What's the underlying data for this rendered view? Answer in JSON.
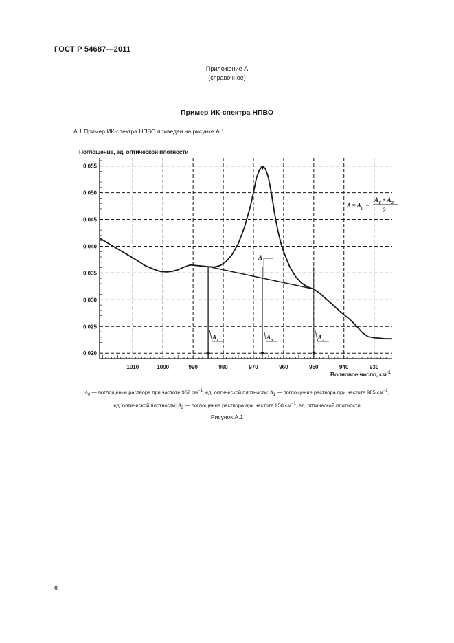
{
  "header": {
    "standard": "ГОСТ Р 54687—2011"
  },
  "annex": {
    "title": "Приложение А",
    "status": "(справочное)"
  },
  "section_title": "Пример ИК-спектра НПВО",
  "paragraph": "А.1  Пример ИК-спектра НПВО приведен на рисунке А.1.",
  "chart_data": {
    "type": "line",
    "ylabel": "Поглощение, ед. оптической плотности",
    "xlabel": "Волновое число, см",
    "xlabel_sup": "-1",
    "x_reversed": true,
    "xlim": [
      1021,
      924
    ],
    "ylim": [
      0.019,
      0.0565
    ],
    "x_ticks": [
      "1010",
      "1000",
      "990",
      "980",
      "970",
      "960",
      "950",
      "940",
      "930"
    ],
    "y_ticks": [
      "0,055",
      "0,050",
      "0,045",
      "0,040",
      "0,035",
      "0,030",
      "0,025",
      "0,020"
    ],
    "grid": true,
    "series": [
      {
        "x": [
          1021,
          1018,
          1015,
          1012,
          1009,
          1006,
          1003,
          1001,
          999,
          997,
          995,
          993,
          991,
          989,
          987,
          985,
          983,
          981,
          979,
          977,
          975,
          973,
          971,
          970,
          969,
          968,
          967,
          966,
          965,
          964,
          963,
          962,
          961,
          960,
          958,
          956,
          954,
          952,
          950,
          948,
          946,
          944,
          942,
          940,
          938,
          936,
          934,
          932,
          930,
          928,
          926,
          924
        ],
        "y": [
          0.0415,
          0.0405,
          0.0395,
          0.0385,
          0.0375,
          0.0364,
          0.0357,
          0.0353,
          0.0352,
          0.0353,
          0.0356,
          0.0361,
          0.0365,
          0.0364,
          0.0363,
          0.0362,
          0.0361,
          0.0364,
          0.0372,
          0.0385,
          0.0405,
          0.0435,
          0.0475,
          0.05,
          0.0528,
          0.0543,
          0.055,
          0.0545,
          0.0528,
          0.0498,
          0.0462,
          0.0432,
          0.0408,
          0.039,
          0.0362,
          0.0343,
          0.0331,
          0.0324,
          0.032,
          0.0312,
          0.0302,
          0.0292,
          0.0282,
          0.0272,
          0.0263,
          0.0252,
          0.0239,
          0.0231,
          0.0229,
          0.0228,
          0.0227,
          0.0227
        ]
      },
      {
        "x": [
          985,
          950
        ],
        "y": [
          0.0362,
          0.032
        ]
      }
    ],
    "markers": [
      {
        "x": 985,
        "label": "A",
        "sub": "1"
      },
      {
        "x": 967,
        "label": "A",
        "sub": "0"
      },
      {
        "x": 950,
        "label": "A",
        "sub": "2"
      }
    ],
    "annotation_A": "A",
    "formula": {
      "lhs": "A = A",
      "lhs_sub": "0",
      "minus": "−",
      "num": "A",
      "num_sub1": "1",
      "plus": " + A",
      "num_sub2": "2",
      "den": "2"
    }
  },
  "legend": {
    "a0_sym": "A",
    "a0_sub": "0",
    "a0_text": " — поглощение раствора при частоте 967 см",
    "a0_tail": ", ед. оптической плотности; ",
    "a1_sym": "A",
    "a1_sub": "1",
    "a1_text": " — поглощение раствора при частоте 985 см",
    "a1_tail": ",",
    "a1_tail2": "ед. оптической плотности; ",
    "a2_sym": "A",
    "a2_sub": "2",
    "a2_text": " — поглощение раствора при частоте 950 см",
    "a2_tail": ", ед. оптической плотности",
    "sup": "−1"
  },
  "figure_caption": "Рисунок А.1",
  "page_number": "6"
}
